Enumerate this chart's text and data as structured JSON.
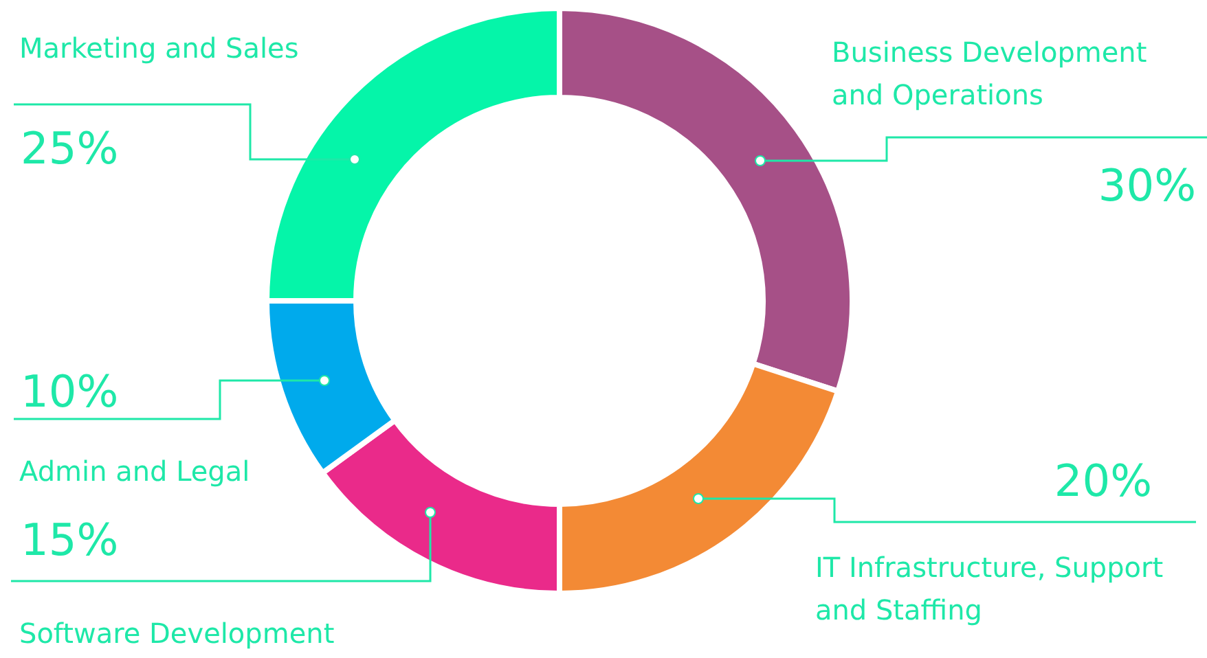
{
  "chart_data": {
    "type": "donut",
    "categories": [
      "Business Development and Operations",
      "IT Infrastructure, Support and Staffing",
      "Software Development",
      "Admin and Legal",
      "Marketing and Sales"
    ],
    "values": [
      30,
      20,
      15,
      10,
      25
    ],
    "value_labels": [
      "30%",
      "20%",
      "15%",
      "10%",
      "25%"
    ],
    "colors": [
      "#a65087",
      "#f38a35",
      "#ea2a8a",
      "#00aaec",
      "#05f5a9"
    ]
  }
}
